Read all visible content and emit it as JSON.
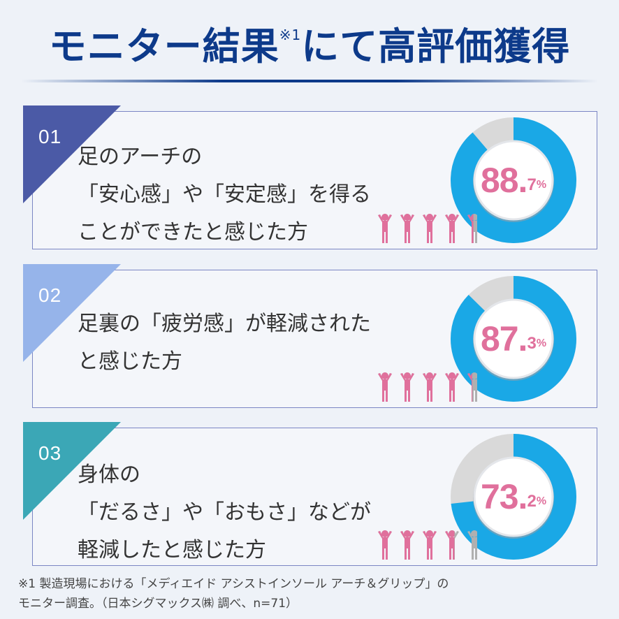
{
  "header": {
    "title_main": "モニター結果",
    "title_sup": "※1",
    "title_rest": "にて高評価獲得"
  },
  "cards": [
    {
      "number": "01",
      "lines": [
        "足のアーチの",
        "「安心感」や「安定感」を得る",
        "ことができたと感じた方"
      ],
      "percent_int": "88.",
      "percent_dec": "7",
      "percent_unit": "%",
      "value": 88.7,
      "ribbon_color": "#4b5aa6"
    },
    {
      "number": "02",
      "lines": [
        "足裏の「疲労感」が軽減された",
        "と感じた方"
      ],
      "percent_int": "87.",
      "percent_dec": "3",
      "percent_unit": "%",
      "value": 87.3,
      "ribbon_color": "#96b4ea"
    },
    {
      "number": "03",
      "lines": [
        "身体の",
        "「だるさ」や「おもさ」などが",
        "軽減したと感じた方"
      ],
      "percent_int": "73.",
      "percent_dec": "2",
      "percent_unit": "%",
      "value": 73.2,
      "ribbon_color": "#3ba7b6"
    }
  ],
  "colors": {
    "title": "#0d3a8a",
    "donut_fill": "#1aa8e6",
    "donut_rest": "#d9d9d9",
    "percent": "#e0709c",
    "person_fill": "#e0709c",
    "person_empty": "#b0b0b0"
  },
  "icons": {
    "people": "person-icon"
  },
  "footnote": {
    "line1": "※1 製造現場における「メディエイド アシストインソール アーチ＆グリップ」の",
    "line2": "モニター調査。（日本シグマックス㈱ 調べ、n=71）"
  }
}
